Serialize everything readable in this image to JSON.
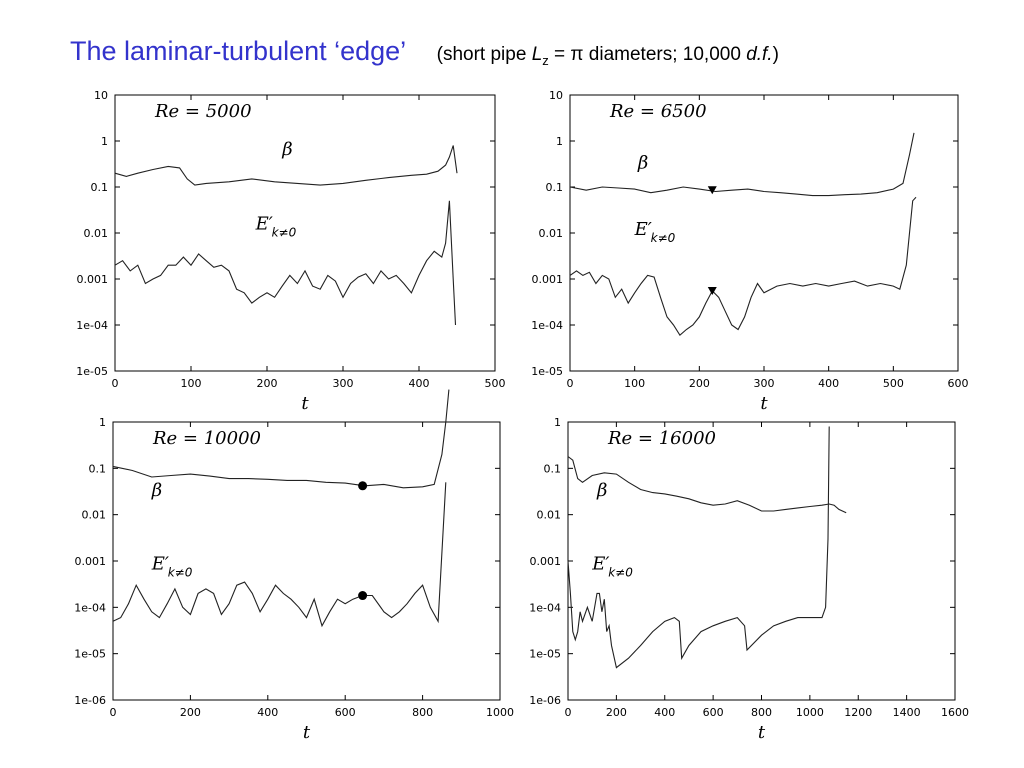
{
  "title": {
    "main": "The laminar-turbulent ‘edge’",
    "open": "(short pipe ",
    "lz_var": "L",
    "lz_sub": "z",
    "lz_eq": " = π  diameters; 10,000 ",
    "df": "d.f.",
    "close": ")"
  },
  "chart_data": [
    {
      "type": "line",
      "title": "",
      "re_label": "Re = 5000",
      "xlabel": "t",
      "ylabel": "",
      "yscale": "log",
      "xlim": [
        0,
        500
      ],
      "ylim": [
        1e-05,
        10
      ],
      "xticks": [
        0,
        100,
        200,
        300,
        400,
        500
      ],
      "yticks": [
        "1e-05",
        "1e-04",
        "0.001",
        "0.01",
        "0.1",
        "1",
        "10"
      ],
      "yticks_val": [
        1e-05,
        0.0001,
        0.001,
        0.01,
        0.1,
        1,
        10
      ],
      "grid": false,
      "labels": {
        "beta": {
          "text": "β",
          "x": 220,
          "y": 0.5
        },
        "energy": {
          "text": "E′",
          "sub": "k≠0",
          "x": 185,
          "y": 0.012
        }
      },
      "series": [
        {
          "name": "β",
          "x": [
            0,
            15,
            30,
            50,
            70,
            85,
            95,
            105,
            120,
            150,
            180,
            210,
            240,
            270,
            300,
            330,
            360,
            390,
            410,
            425,
            435,
            440,
            445,
            450
          ],
          "y": [
            0.2,
            0.17,
            0.2,
            0.24,
            0.28,
            0.26,
            0.15,
            0.11,
            0.12,
            0.13,
            0.15,
            0.13,
            0.12,
            0.11,
            0.12,
            0.14,
            0.16,
            0.18,
            0.19,
            0.22,
            0.3,
            0.45,
            0.8,
            0.2
          ]
        },
        {
          "name": "E′ k≠0",
          "x": [
            0,
            10,
            20,
            30,
            40,
            50,
            60,
            70,
            80,
            90,
            100,
            110,
            120,
            130,
            140,
            150,
            160,
            170,
            180,
            190,
            200,
            210,
            220,
            230,
            240,
            250,
            260,
            270,
            280,
            290,
            300,
            310,
            320,
            330,
            340,
            350,
            360,
            370,
            380,
            390,
            400,
            410,
            420,
            430,
            435,
            440,
            445,
            448
          ],
          "y": [
            0.002,
            0.0025,
            0.0015,
            0.002,
            0.0008,
            0.001,
            0.0012,
            0.002,
            0.002,
            0.003,
            0.002,
            0.0035,
            0.0025,
            0.0018,
            0.002,
            0.0015,
            0.0006,
            0.0005,
            0.0003,
            0.0004,
            0.0005,
            0.0004,
            0.0007,
            0.0012,
            0.0008,
            0.0015,
            0.0007,
            0.0006,
            0.0012,
            0.0009,
            0.0004,
            0.0008,
            0.0011,
            0.0013,
            0.0008,
            0.0015,
            0.001,
            0.0012,
            0.0008,
            0.0005,
            0.0012,
            0.0025,
            0.004,
            0.003,
            0.006,
            0.05,
            0.001,
            0.0001
          ]
        }
      ]
    },
    {
      "type": "line",
      "title": "",
      "re_label": "Re = 6500",
      "xlabel": "t",
      "ylabel": "",
      "yscale": "log",
      "xlim": [
        0,
        600
      ],
      "ylim": [
        1e-05,
        10
      ],
      "xticks": [
        0,
        100,
        200,
        300,
        400,
        500,
        600
      ],
      "yticks": [
        "1e-05",
        "1e-04",
        "0.001",
        "0.01",
        "0.1",
        "1",
        "10"
      ],
      "yticks_val": [
        1e-05,
        0.0001,
        0.001,
        0.01,
        0.1,
        1,
        10
      ],
      "grid": false,
      "labels": {
        "beta": {
          "text": "β",
          "x": 105,
          "y": 0.25
        },
        "energy": {
          "text": "E′",
          "sub": "k≠0",
          "x": 100,
          "y": 0.009
        }
      },
      "markers": [
        {
          "shape": "triangle-down",
          "x": 220,
          "y": 0.085
        },
        {
          "shape": "triangle-down",
          "x": 220,
          "y": 0.00055
        }
      ],
      "series": [
        {
          "name": "β",
          "x": [
            0,
            25,
            50,
            75,
            100,
            125,
            150,
            175,
            200,
            225,
            250,
            275,
            300,
            325,
            350,
            375,
            400,
            425,
            450,
            475,
            500,
            515,
            525,
            532
          ],
          "y": [
            0.1,
            0.085,
            0.1,
            0.095,
            0.09,
            0.075,
            0.085,
            0.1,
            0.09,
            0.08,
            0.085,
            0.09,
            0.08,
            0.075,
            0.07,
            0.065,
            0.065,
            0.068,
            0.07,
            0.075,
            0.09,
            0.12,
            0.5,
            1.5
          ]
        },
        {
          "name": "E′ k≠0",
          "x": [
            0,
            10,
            20,
            30,
            40,
            50,
            60,
            70,
            80,
            90,
            100,
            110,
            120,
            130,
            140,
            150,
            160,
            170,
            180,
            190,
            200,
            210,
            220,
            230,
            240,
            250,
            260,
            270,
            280,
            290,
            300,
            320,
            340,
            360,
            380,
            400,
            420,
            440,
            460,
            480,
            500,
            510,
            520,
            530,
            535
          ],
          "y": [
            0.0012,
            0.0015,
            0.0012,
            0.0014,
            0.0008,
            0.0012,
            0.001,
            0.0004,
            0.0006,
            0.0003,
            0.0005,
            0.0008,
            0.0012,
            0.0011,
            0.0004,
            0.00015,
            0.0001,
            6e-05,
            8e-05,
            0.0001,
            0.00015,
            0.0003,
            0.00055,
            0.0004,
            0.0002,
            0.0001,
            8e-05,
            0.00015,
            0.0004,
            0.0008,
            0.0005,
            0.0007,
            0.0008,
            0.0007,
            0.0008,
            0.0007,
            0.0008,
            0.0009,
            0.0007,
            0.0008,
            0.0007,
            0.0006,
            0.002,
            0.05,
            0.06
          ]
        }
      ]
    },
    {
      "type": "line",
      "title": "",
      "re_label": "Re = 10000",
      "xlabel": "t",
      "ylabel": "",
      "yscale": "log",
      "xlim": [
        0,
        1000
      ],
      "ylim": [
        1e-06,
        1
      ],
      "xticks": [
        0,
        200,
        400,
        600,
        800,
        1000
      ],
      "yticks": [
        "1e-06",
        "1e-05",
        "1e-04",
        "0.001",
        "0.01",
        "0.1",
        "1"
      ],
      "yticks_val": [
        1e-06,
        1e-05,
        0.0001,
        0.001,
        0.01,
        0.1,
        1
      ],
      "grid": false,
      "labels": {
        "beta": {
          "text": "β",
          "x": 100,
          "y": 0.025
        },
        "energy": {
          "text": "E′",
          "sub": "k≠0",
          "x": 100,
          "y": 0.00065
        }
      },
      "markers": [
        {
          "shape": "circle",
          "x": 645,
          "y": 0.042
        },
        {
          "shape": "circle",
          "x": 645,
          "y": 0.00018
        }
      ],
      "series": [
        {
          "name": "β",
          "x": [
            0,
            50,
            100,
            150,
            200,
            250,
            300,
            350,
            400,
            450,
            500,
            550,
            600,
            650,
            700,
            750,
            800,
            830,
            850,
            860,
            868
          ],
          "y": [
            0.11,
            0.09,
            0.065,
            0.07,
            0.075,
            0.068,
            0.06,
            0.06,
            0.058,
            0.055,
            0.055,
            0.05,
            0.048,
            0.042,
            0.045,
            0.038,
            0.04,
            0.045,
            0.2,
            1,
            5
          ]
        },
        {
          "name": "E′ k≠0",
          "x": [
            0,
            20,
            40,
            60,
            80,
            100,
            120,
            140,
            160,
            180,
            200,
            220,
            240,
            260,
            280,
            300,
            320,
            340,
            360,
            380,
            400,
            420,
            440,
            460,
            480,
            500,
            520,
            540,
            560,
            580,
            600,
            620,
            645,
            670,
            700,
            720,
            740,
            760,
            780,
            800,
            820,
            840,
            860
          ],
          "y": [
            5e-05,
            6e-05,
            0.00012,
            0.0003,
            0.00015,
            8e-05,
            6e-05,
            0.00012,
            0.00025,
            0.0001,
            7e-05,
            0.0002,
            0.00025,
            0.0002,
            7e-05,
            0.00012,
            0.0003,
            0.00035,
            0.0002,
            8e-05,
            0.00015,
            0.0003,
            0.0002,
            0.00015,
            0.0001,
            6e-05,
            0.00015,
            4e-05,
            8e-05,
            0.00015,
            0.00012,
            0.00015,
            0.00018,
            0.00018,
            8e-05,
            6e-05,
            8e-05,
            0.00012,
            0.0002,
            0.0003,
            0.0001,
            5e-05,
            0.05
          ]
        }
      ]
    },
    {
      "type": "line",
      "title": "",
      "re_label": "Re = 16000",
      "xlabel": "t",
      "ylabel": "",
      "yscale": "log",
      "xlim": [
        0,
        1600
      ],
      "ylim": [
        1e-06,
        1
      ],
      "xticks": [
        0,
        200,
        400,
        600,
        800,
        1000,
        1200,
        1400,
        1600
      ],
      "yticks": [
        "1e-06",
        "1e-05",
        "1e-04",
        "0.001",
        "0.01",
        "0.1",
        "1"
      ],
      "yticks_val": [
        1e-06,
        1e-05,
        0.0001,
        0.001,
        0.01,
        0.1,
        1
      ],
      "grid": false,
      "labels": {
        "beta": {
          "text": "β",
          "x": 120,
          "y": 0.025
        },
        "energy": {
          "text": "E′",
          "sub": "k≠0",
          "x": 100,
          "y": 0.00065
        }
      },
      "series": [
        {
          "name": "β",
          "x": [
            0,
            20,
            40,
            60,
            100,
            150,
            200,
            250,
            300,
            350,
            400,
            450,
            500,
            550,
            600,
            650,
            700,
            750,
            800,
            850,
            900,
            950,
            1000,
            1050,
            1080,
            1100,
            1120,
            1150
          ],
          "y": [
            0.18,
            0.15,
            0.06,
            0.05,
            0.07,
            0.08,
            0.075,
            0.05,
            0.035,
            0.03,
            0.028,
            0.025,
            0.022,
            0.018,
            0.016,
            0.017,
            0.02,
            0.016,
            0.012,
            0.012,
            0.013,
            0.014,
            0.015,
            0.016,
            0.017,
            0.016,
            0.013,
            0.011
          ]
        },
        {
          "name": "E′ k≠0",
          "x": [
            0,
            10,
            20,
            30,
            40,
            50,
            60,
            80,
            100,
            120,
            130,
            140,
            150,
            160,
            170,
            180,
            200,
            250,
            300,
            350,
            400,
            440,
            460,
            470,
            500,
            550,
            600,
            650,
            700,
            730,
            740,
            800,
            850,
            900,
            950,
            1000,
            1030,
            1050,
            1065,
            1075,
            1080
          ],
          "y": [
            0.001,
            0.0002,
            3e-05,
            2e-05,
            3e-05,
            8e-05,
            5e-05,
            0.0001,
            5e-05,
            0.0002,
            0.0002,
            8e-05,
            0.00015,
            3e-05,
            4e-05,
            1.5e-05,
            5e-06,
            8e-06,
            1.5e-05,
            3e-05,
            5e-05,
            6e-05,
            5e-05,
            8e-06,
            1.5e-05,
            3e-05,
            4e-05,
            5e-05,
            6e-05,
            4e-05,
            1.2e-05,
            2.5e-05,
            4e-05,
            5e-05,
            6e-05,
            6e-05,
            6e-05,
            6e-05,
            0.0001,
            0.003,
            0.8
          ]
        }
      ]
    }
  ]
}
